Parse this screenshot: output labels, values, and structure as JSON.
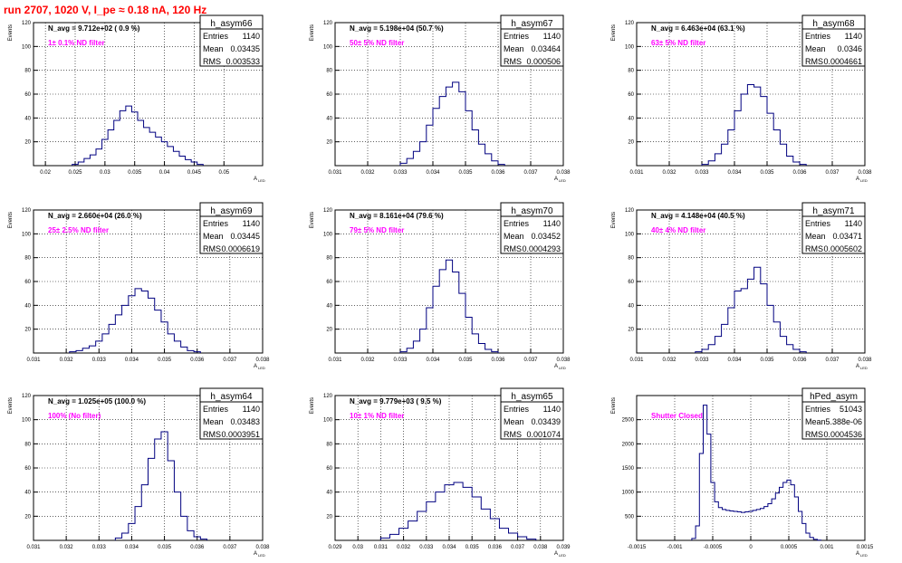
{
  "page_title": "run 2707,  1020 V, I_pe ≈ 0.18 nA, 120 Hz",
  "y_axis_label": "Events",
  "x_axis_label": "A",
  "x_axis_subscript": "LED",
  "stats_labels": {
    "entries": "Entries",
    "mean": "Mean",
    "rms": "RMS"
  },
  "colors": {
    "title": "#ff0000",
    "histogram": "#000080",
    "annotation": "#ff00ff",
    "grid": "#000000"
  },
  "chart_data": [
    {
      "type": "area",
      "hist_name": "h_asym66",
      "navg": "N_avg = 9.712e+02 ( 0.9 %)",
      "filter": "1± 0.1% ND filter",
      "entries": "1140",
      "mean": "0.03435",
      "rms": "0.003533",
      "xlim": [
        0.018,
        0.0565
      ],
      "ylim": [
        0,
        120
      ],
      "xticks": [
        0.02,
        0.025,
        0.03,
        0.035,
        0.04,
        0.045,
        0.05
      ],
      "xticklabels": [
        "0.02",
        "0.025",
        "0.03",
        "0.035",
        "0.04",
        "0.045",
        "0.05"
      ],
      "yticks": [
        20,
        40,
        60,
        80,
        100,
        120
      ],
      "yticklabels": [
        "20",
        "40",
        "60",
        "80",
        "100",
        "120"
      ],
      "x": [
        0.025,
        0.026,
        0.027,
        0.028,
        0.029,
        0.03,
        0.031,
        0.032,
        0.033,
        0.034,
        0.035,
        0.036,
        0.037,
        0.038,
        0.039,
        0.04,
        0.041,
        0.042,
        0.043,
        0.044,
        0.045,
        0.046
      ],
      "values": [
        1,
        3,
        6,
        9,
        14,
        22,
        30,
        38,
        46,
        50,
        45,
        38,
        32,
        28,
        24,
        20,
        16,
        12,
        8,
        5,
        3,
        1
      ]
    },
    {
      "type": "area",
      "hist_name": "h_asym67",
      "navg": "N_avg = 5.198e+04 (50.7 %)",
      "filter": "50± 5% ND filter",
      "entries": "1140",
      "mean": "0.03464",
      "rms": "0.000506",
      "xlim": [
        0.031,
        0.038
      ],
      "ylim": [
        0,
        120
      ],
      "xticks": [
        0.031,
        0.032,
        0.033,
        0.034,
        0.035,
        0.036,
        0.037,
        0.038
      ],
      "xticklabels": [
        "0.031",
        "0.032",
        "0.033",
        "0.034",
        "0.035",
        "0.036",
        "0.037",
        "0.038"
      ],
      "yticks": [
        20,
        40,
        60,
        80,
        100,
        120
      ],
      "yticklabels": [
        "20",
        "40",
        "60",
        "80",
        "100",
        "120"
      ],
      "x": [
        0.0331,
        0.0333,
        0.0335,
        0.0337,
        0.0339,
        0.0341,
        0.0343,
        0.0345,
        0.0347,
        0.0349,
        0.0351,
        0.0353,
        0.0355,
        0.0357,
        0.0359,
        0.0361
      ],
      "values": [
        2,
        6,
        12,
        20,
        34,
        48,
        58,
        66,
        70,
        62,
        46,
        30,
        18,
        10,
        4,
        1
      ]
    },
    {
      "type": "area",
      "hist_name": "h_asym68",
      "navg": "N_avg = 6.463e+04 (63.1 %)",
      "filter": "63± 5% ND filter",
      "entries": "1140",
      "mean": "0.0346",
      "rms": "0.0004661",
      "xlim": [
        0.031,
        0.038
      ],
      "ylim": [
        0,
        120
      ],
      "xticks": [
        0.031,
        0.032,
        0.033,
        0.034,
        0.035,
        0.036,
        0.037,
        0.038
      ],
      "xticklabels": [
        "0.031",
        "0.032",
        "0.033",
        "0.034",
        "0.035",
        "0.036",
        "0.037",
        "0.038"
      ],
      "yticks": [
        20,
        40,
        60,
        80,
        100,
        120
      ],
      "yticklabels": [
        "20",
        "40",
        "60",
        "80",
        "100",
        "120"
      ],
      "x": [
        0.0331,
        0.0333,
        0.0335,
        0.0337,
        0.0339,
        0.0341,
        0.0343,
        0.0345,
        0.0347,
        0.0349,
        0.0351,
        0.0353,
        0.0355,
        0.0357,
        0.0359,
        0.0361
      ],
      "values": [
        1,
        4,
        10,
        18,
        30,
        46,
        60,
        68,
        66,
        58,
        44,
        30,
        18,
        8,
        3,
        1
      ]
    },
    {
      "type": "area",
      "hist_name": "h_asym69",
      "navg": "N_avg = 2.660e+04 (26.0 %)",
      "filter": "25± 2.5% ND filter",
      "entries": "1140",
      "mean": "0.03445",
      "rms": "0.0006619",
      "xlim": [
        0.031,
        0.038
      ],
      "ylim": [
        0,
        120
      ],
      "xticks": [
        0.031,
        0.032,
        0.033,
        0.034,
        0.035,
        0.036,
        0.037,
        0.038
      ],
      "xticklabels": [
        "0.031",
        "0.032",
        "0.033",
        "0.034",
        "0.035",
        "0.036",
        "0.037",
        "0.038"
      ],
      "yticks": [
        20,
        40,
        60,
        80,
        100,
        120
      ],
      "yticklabels": [
        "20",
        "40",
        "60",
        "80",
        "100",
        "120"
      ],
      "x": [
        0.0322,
        0.0324,
        0.0326,
        0.0328,
        0.033,
        0.0332,
        0.0334,
        0.0336,
        0.0338,
        0.034,
        0.0342,
        0.0344,
        0.0346,
        0.0348,
        0.035,
        0.0352,
        0.0354,
        0.0356,
        0.0358,
        0.036
      ],
      "values": [
        1,
        2,
        4,
        6,
        10,
        16,
        24,
        32,
        40,
        48,
        54,
        52,
        46,
        36,
        26,
        16,
        10,
        5,
        2,
        1
      ]
    },
    {
      "type": "area",
      "hist_name": "h_asym70",
      "navg": "N_avg = 8.161e+04 (79.6 %)",
      "filter": "79± 5% ND filter",
      "entries": "1140",
      "mean": "0.03452",
      "rms": "0.0004293",
      "xlim": [
        0.031,
        0.038
      ],
      "ylim": [
        0,
        120
      ],
      "xticks": [
        0.031,
        0.032,
        0.033,
        0.034,
        0.035,
        0.036,
        0.037,
        0.038
      ],
      "xticklabels": [
        "0.031",
        "0.032",
        "0.033",
        "0.034",
        "0.035",
        "0.036",
        "0.037",
        "0.038"
      ],
      "yticks": [
        20,
        40,
        60,
        80,
        100,
        120
      ],
      "yticklabels": [
        "20",
        "40",
        "60",
        "80",
        "100",
        "120"
      ],
      "x": [
        0.0331,
        0.0333,
        0.0335,
        0.0337,
        0.0339,
        0.0341,
        0.0343,
        0.0345,
        0.0347,
        0.0349,
        0.0351,
        0.0353,
        0.0355,
        0.0357,
        0.0359
      ],
      "values": [
        1,
        4,
        10,
        20,
        38,
        56,
        70,
        78,
        68,
        50,
        30,
        16,
        8,
        3,
        1
      ]
    },
    {
      "type": "area",
      "hist_name": "h_asym71",
      "navg": "N_avg = 4.148e+04 (40.5 %)",
      "filter": "40± 4% ND filter",
      "entries": "1140",
      "mean": "0.03471",
      "rms": "0.0005602",
      "xlim": [
        0.031,
        0.038
      ],
      "ylim": [
        0,
        120
      ],
      "xticks": [
        0.031,
        0.032,
        0.033,
        0.034,
        0.035,
        0.036,
        0.037,
        0.038
      ],
      "xticklabels": [
        "0.031",
        "0.032",
        "0.033",
        "0.034",
        "0.035",
        "0.036",
        "0.037",
        "0.038"
      ],
      "yticks": [
        20,
        40,
        60,
        80,
        100,
        120
      ],
      "yticklabels": [
        "20",
        "40",
        "60",
        "80",
        "100",
        "120"
      ],
      "x": [
        0.0329,
        0.0331,
        0.0333,
        0.0335,
        0.0337,
        0.0339,
        0.0341,
        0.0343,
        0.0345,
        0.0347,
        0.0349,
        0.0351,
        0.0353,
        0.0355,
        0.0357,
        0.0359,
        0.0361
      ],
      "values": [
        1,
        3,
        7,
        14,
        24,
        38,
        52,
        54,
        62,
        72,
        58,
        40,
        26,
        14,
        7,
        3,
        1
      ]
    },
    {
      "type": "area",
      "hist_name": "h_asym64",
      "navg": "N_avg = 1.025e+05 (100.0 %)",
      "filter": "100% (No filter)",
      "entries": "1140",
      "mean": "0.03483",
      "rms": "0.0003951",
      "xlim": [
        0.031,
        0.038
      ],
      "ylim": [
        0,
        120
      ],
      "xticks": [
        0.031,
        0.032,
        0.033,
        0.034,
        0.035,
        0.036,
        0.037,
        0.038
      ],
      "xticklabels": [
        "0.031",
        "0.032",
        "0.033",
        "0.034",
        "0.035",
        "0.036",
        "0.037",
        "0.038"
      ],
      "yticks": [
        20,
        40,
        60,
        80,
        100,
        120
      ],
      "yticklabels": [
        "20",
        "40",
        "60",
        "80",
        "100",
        "120"
      ],
      "x": [
        0.0336,
        0.0338,
        0.034,
        0.0342,
        0.0344,
        0.0346,
        0.0348,
        0.035,
        0.0352,
        0.0354,
        0.0356,
        0.0358,
        0.036,
        0.0362
      ],
      "values": [
        2,
        6,
        14,
        28,
        46,
        68,
        84,
        90,
        66,
        40,
        20,
        8,
        3,
        1
      ]
    },
    {
      "type": "area",
      "hist_name": "h_asym65",
      "navg": "N_avg = 9.779e+03 ( 9.5 %)",
      "filter": "10± 1% ND filter",
      "entries": "1140",
      "mean": "0.03439",
      "rms": "0.001074",
      "xlim": [
        0.029,
        0.039
      ],
      "ylim": [
        0,
        120
      ],
      "xticks": [
        0.029,
        0.03,
        0.031,
        0.032,
        0.033,
        0.034,
        0.035,
        0.036,
        0.037,
        0.038,
        0.039
      ],
      "xticklabels": [
        "0.029",
        "0.03",
        "0.031",
        "0.032",
        "0.033",
        "0.034",
        "0.035",
        "0.036",
        "0.037",
        "0.038",
        "0.039"
      ],
      "yticks": [
        20,
        40,
        60,
        80,
        100,
        120
      ],
      "yticklabels": [
        "20",
        "40",
        "60",
        "80",
        "100",
        "120"
      ],
      "x": [
        0.0312,
        0.0316,
        0.032,
        0.0324,
        0.0328,
        0.0332,
        0.0336,
        0.034,
        0.0344,
        0.0348,
        0.0352,
        0.0356,
        0.036,
        0.0364,
        0.0368,
        0.0372,
        0.0376
      ],
      "values": [
        2,
        5,
        10,
        16,
        24,
        32,
        40,
        46,
        48,
        44,
        36,
        26,
        18,
        10,
        6,
        3,
        1
      ]
    },
    {
      "type": "area",
      "hist_name": "hPed_asym",
      "navg": "",
      "filter": "Shutter Closed",
      "entries": "51043",
      "mean": "5.388e-06",
      "rms": "0.0004536",
      "xlim": [
        -0.0015,
        0.0015
      ],
      "ylim": [
        0,
        3000
      ],
      "xticks": [
        -0.0015,
        -0.001,
        -0.0005,
        0,
        0.0005,
        0.001,
        0.0015
      ],
      "xticklabels": [
        "-0.0015",
        "-0.001",
        "-0.0005",
        "0",
        "0.0005",
        "0.001",
        "0.0015"
      ],
      "yticks": [
        500,
        1000,
        1500,
        2000,
        2500
      ],
      "yticklabels": [
        "500",
        "1000",
        "1500",
        "2000",
        "2500"
      ],
      "x": [
        -0.00075,
        -0.0007,
        -0.00065,
        -0.0006,
        -0.00055,
        -0.0005,
        -0.00045,
        -0.0004,
        -0.00035,
        -0.0003,
        -0.00025,
        -0.0002,
        -0.00015,
        -0.0001,
        -5e-05,
        0,
        5e-05,
        0.0001,
        0.00015,
        0.0002,
        0.00025,
        0.0003,
        0.00035,
        0.0004,
        0.00045,
        0.0005,
        0.00055,
        0.0006,
        0.00065,
        0.0007,
        0.00075,
        0.0008,
        0.00085,
        0.0009
      ],
      "values": [
        40,
        300,
        1800,
        2800,
        2200,
        1200,
        800,
        680,
        640,
        620,
        610,
        600,
        590,
        580,
        590,
        600,
        620,
        640,
        660,
        700,
        760,
        860,
        980,
        1100,
        1200,
        1250,
        1150,
        900,
        600,
        350,
        150,
        60,
        20,
        5
      ]
    }
  ]
}
